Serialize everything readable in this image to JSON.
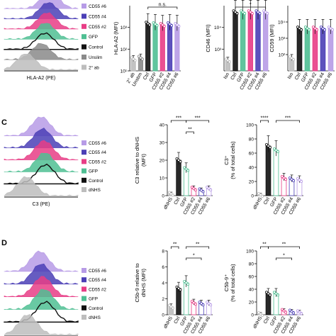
{
  "colors": {
    "cd55_6": "#b79be6",
    "cd55_4": "#4b3fb6",
    "cd55_2": "#e83d86",
    "gfp": "#4fbf93",
    "control": "#111111",
    "unstim": "#8a8a8a",
    "iso": "#bdbdbd"
  },
  "panels": {
    "c_label": "C",
    "d_label": "D"
  },
  "chart_data": [
    {
      "id": "hist-top",
      "type": "histogram-stack",
      "xlabel": "HLA-A2 (PE)",
      "legend": [
        "CD55 #6",
        "CD55 #4",
        "CD55 #2",
        "GFP",
        "Control",
        "Unslim",
        "2° ab"
      ]
    },
    {
      "id": "bar-hla",
      "type": "bar",
      "ylabel": "HLA-A2 (MFI)",
      "yscale": "log",
      "yticks": [
        "10¹",
        "10²",
        "10³"
      ],
      "categories": [
        "2° ab",
        "Unstim",
        "Ctrl",
        "GFP",
        "CD55 #2",
        "CD55 #4",
        "CD55 #6"
      ],
      "values": [
        35,
        40,
        1500,
        1400,
        1300,
        1400,
        1300
      ],
      "ylim": [
        10,
        10000
      ],
      "significance": [
        "n.s."
      ]
    },
    {
      "id": "bar-cd46",
      "type": "bar",
      "ylabel": "CD46 (MFI)",
      "yscale": "log",
      "yticks": [
        "10³",
        "10⁴"
      ],
      "categories": [
        "Iso",
        "Ctrl",
        "GFP",
        "CD55 #2",
        "CD55 #4",
        "CD55 #6"
      ],
      "values": [
        300,
        50000,
        50000,
        50000,
        50000,
        50000
      ],
      "ylim": [
        100,
        100000
      ],
      "significance": [
        "*"
      ]
    },
    {
      "id": "bar-cd59",
      "type": "bar",
      "ylabel": "CD59 (MFI)",
      "yscale": "log",
      "yticks": [
        "10²",
        "10³",
        "10⁴"
      ],
      "categories": [
        "Iso",
        "Ctrl",
        "GFP",
        "CD55 #2",
        "CD55 #4",
        "CD55 #6"
      ],
      "values": [
        60,
        4000,
        4000,
        4000,
        4000,
        4000
      ],
      "ylim": [
        10,
        100000
      ]
    },
    {
      "id": "hist-c",
      "type": "histogram-stack",
      "xlabel": "C3 (PE)",
      "legend": [
        "CD55 #6",
        "CD55 #4",
        "CD55 #2",
        "GFP",
        "Control",
        "dNHS"
      ]
    },
    {
      "id": "bar-c3",
      "type": "bar",
      "ylabel": "C3 relative to dNHS (MFI)",
      "yticks": [
        "0",
        "10",
        "20",
        "30",
        "40"
      ],
      "categories": [
        "dNHS",
        "Ctrl",
        "GFP",
        "CD55 #2",
        "CD55 #4",
        "CD55 #6"
      ],
      "values": [
        1,
        20,
        15,
        4,
        3,
        4
      ],
      "ylim": [
        0,
        40
      ],
      "significance": [
        "***",
        "***",
        "**"
      ]
    },
    {
      "id": "bar-c3pct",
      "type": "bar",
      "ylabel": "C3⁺ (% of total cells)",
      "yticks": [
        "0",
        "20",
        "40",
        "60",
        "80",
        "100"
      ],
      "categories": [
        "dNHS",
        "Ctrl",
        "GFP",
        "CD55 #2",
        "CD55 #4",
        "CD55 #6"
      ],
      "values": [
        1,
        70,
        64,
        25,
        23,
        22
      ],
      "ylim": [
        0,
        100
      ],
      "significance": [
        "****",
        "***"
      ]
    },
    {
      "id": "hist-d",
      "type": "histogram-stack",
      "legend": [
        "CD55 #6",
        "CD55 #4",
        "CD55 #2",
        "GFP",
        "Control",
        "dNHS"
      ]
    },
    {
      "id": "bar-c5b9",
      "type": "bar",
      "ylabel": "C5b-9 relative to dNHS (MFI)",
      "yticks": [
        "0",
        "2",
        "4",
        "6",
        "8"
      ],
      "categories": [
        "dNHS",
        "Ctrl",
        "GFP",
        "CD55 #2",
        "CD55 #4",
        "CD55 #6"
      ],
      "values": [
        1,
        3.3,
        4,
        1.5,
        1.4,
        1.4
      ],
      "ylim": [
        0,
        8
      ],
      "significance": [
        "**",
        "**",
        "*"
      ]
    },
    {
      "id": "bar-c5b9pct",
      "type": "bar",
      "ylabel": "C5b-9⁺ (% of total cells)",
      "yticks": [
        "0",
        "20",
        "40",
        "60",
        "80",
        "100"
      ],
      "categories": [
        "dNHS",
        "Ctrl",
        "GFP",
        "CD55 #2",
        "CD55 #4",
        "CD55 #6"
      ],
      "values": [
        1,
        33,
        33,
        6,
        5,
        4
      ],
      "ylim": [
        0,
        100
      ],
      "significance": [
        "**",
        "**",
        "*"
      ]
    }
  ]
}
